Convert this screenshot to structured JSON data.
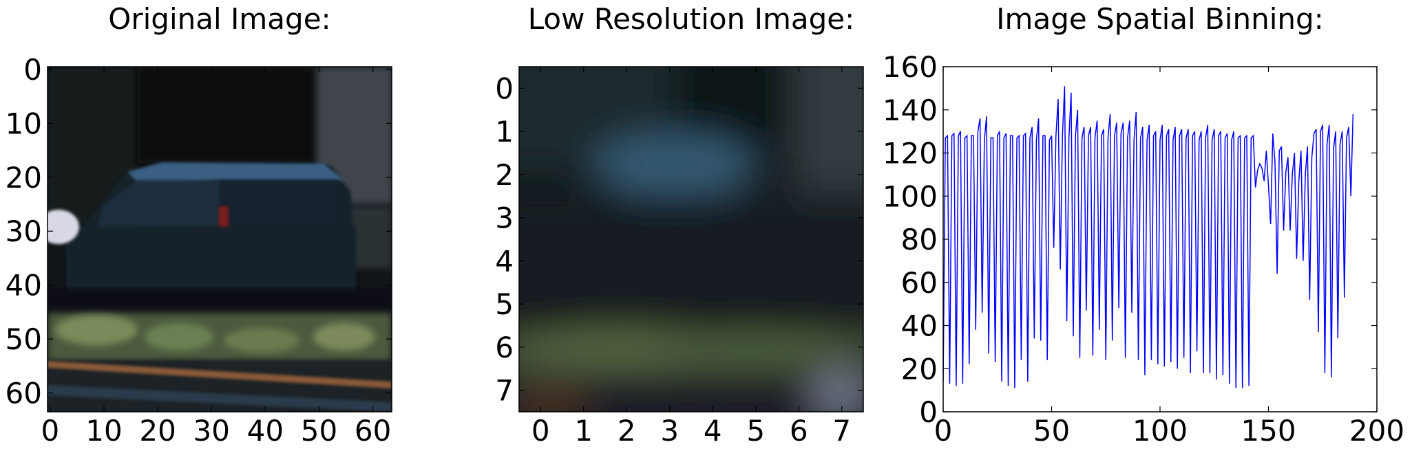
{
  "panels": {
    "original": {
      "title": "Original Image:"
    },
    "lowres": {
      "title": "Low Resolution Image:"
    },
    "binning": {
      "title": "Image Spatial Binning:"
    }
  },
  "chart_data": [
    {
      "type": "image",
      "title": "Original Image:",
      "x_ticks": [
        "0",
        "10",
        "20",
        "30",
        "40",
        "50",
        "60"
      ],
      "y_ticks": [
        "0",
        "10",
        "20",
        "30",
        "40",
        "50",
        "60"
      ],
      "xlim": [
        -0.5,
        63.5
      ],
      "ylim": [
        63.5,
        -0.5
      ],
      "colors": {
        "sky": "#10161c",
        "car": "#1e3446",
        "car_top": "#3c6487",
        "grass": "#5a6a46",
        "road": "#1c2026",
        "building": "#4a5058"
      }
    },
    {
      "type": "image",
      "title": "Low Resolution Image:",
      "x_ticks": [
        "0",
        "1",
        "2",
        "3",
        "4",
        "5",
        "6",
        "7"
      ],
      "y_ticks": [
        "0",
        "1",
        "2",
        "3",
        "4",
        "5",
        "6",
        "7"
      ],
      "xlim": [
        -0.5,
        7.5
      ],
      "ylim": [
        7.5,
        -0.5
      ]
    },
    {
      "type": "line",
      "title": "Image Spatial Binning:",
      "x_ticks": [
        "0",
        "50",
        "100",
        "150",
        "200"
      ],
      "y_ticks": [
        "0",
        "20",
        "40",
        "60",
        "80",
        "100",
        "120",
        "140",
        "160"
      ],
      "xlim": [
        0,
        200
      ],
      "ylim": [
        0,
        160
      ],
      "line_color": "#0000ff",
      "series": [
        {
          "values": [
            14,
            127,
            128,
            13,
            128,
            129,
            12,
            128,
            130,
            13,
            127,
            128,
            22,
            128,
            128,
            38,
            130,
            136,
            46,
            126,
            137,
            27,
            127,
            127,
            23,
            128,
            130,
            14,
            127,
            129,
            12,
            128,
            128,
            11,
            127,
            128,
            24,
            128,
            129,
            14,
            127,
            132,
            34,
            126,
            136,
            33,
            128,
            128,
            24,
            126,
            128,
            76,
            128,
            145,
            66,
            128,
            151,
            42,
            127,
            148,
            35,
            128,
            140,
            25,
            127,
            132,
            47,
            128,
            132,
            26,
            127,
            135,
            38,
            128,
            131,
            24,
            127,
            138,
            33,
            128,
            134,
            48,
            129,
            134,
            25,
            127,
            135,
            46,
            126,
            139,
            24,
            127,
            132,
            17,
            126,
            133,
            24,
            128,
            130,
            22,
            126,
            133,
            21,
            128,
            131,
            23,
            126,
            132,
            20,
            128,
            131,
            25,
            127,
            131,
            18,
            128,
            130,
            28,
            126,
            130,
            18,
            127,
            133,
            18,
            126,
            131,
            15,
            128,
            130,
            17,
            127,
            129,
            13,
            126,
            130,
            11,
            127,
            128,
            11,
            127,
            128,
            12,
            127,
            128,
            104,
            112,
            115,
            113,
            107,
            121,
            105,
            87,
            129,
            116,
            64,
            121,
            123,
            84,
            111,
            118,
            84,
            110,
            120,
            71,
            107,
            121,
            70,
            110,
            123,
            52,
            118,
            129,
            131,
            37,
            130,
            133,
            18,
            124,
            133,
            16,
            122,
            130,
            34,
            124,
            130,
            53,
            127,
            132,
            100,
            138
          ]
        }
      ]
    }
  ]
}
